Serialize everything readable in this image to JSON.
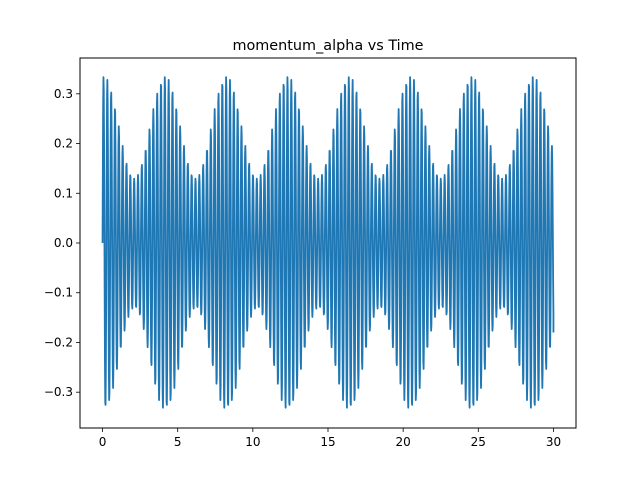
{
  "chart_data": {
    "type": "line",
    "title": "momentum_alpha vs Time",
    "xlabel": "",
    "ylabel": "",
    "xlim": [
      -1.5,
      31.5
    ],
    "ylim": [
      -0.372,
      0.372
    ],
    "x_ticks": [
      {
        "value": 0,
        "label": "0"
      },
      {
        "value": 5,
        "label": "5"
      },
      {
        "value": 10,
        "label": "10"
      },
      {
        "value": 15,
        "label": "15"
      },
      {
        "value": 20,
        "label": "20"
      },
      {
        "value": 25,
        "label": "25"
      },
      {
        "value": 30,
        "label": "30"
      }
    ],
    "y_ticks": [
      {
        "value": -0.3,
        "label": "−0.3"
      },
      {
        "value": -0.2,
        "label": "−0.2"
      },
      {
        "value": -0.1,
        "label": "−0.1"
      },
      {
        "value": 0.0,
        "label": "0.0"
      },
      {
        "value": 0.1,
        "label": "0.1"
      },
      {
        "value": 0.2,
        "label": "0.2"
      },
      {
        "value": 0.3,
        "label": "0.3"
      }
    ],
    "grid": false,
    "series": [
      {
        "color": "#1f77b4",
        "description_of_shape": "fast oscillation (~0.255 time units per cycle) with beating envelope between ~±0.13 and ~±0.33, envelope period ~4.08 time units",
        "x_start": 0,
        "x_end": 30,
        "x_step": 0.02,
        "envelope_peaks_x": [
          0.08,
          4.1,
          8.2,
          12.2,
          16.3,
          20.4,
          24.4,
          28.5
        ],
        "envelope_troughs_x": [
          2.1,
          6.1,
          10.2,
          14.3,
          18.3,
          22.4,
          26.5
        ],
        "max_amplitude": 0.335,
        "min_amplitude": 0.13,
        "y_start": 0.0,
        "y_end": -0.18
      }
    ]
  }
}
